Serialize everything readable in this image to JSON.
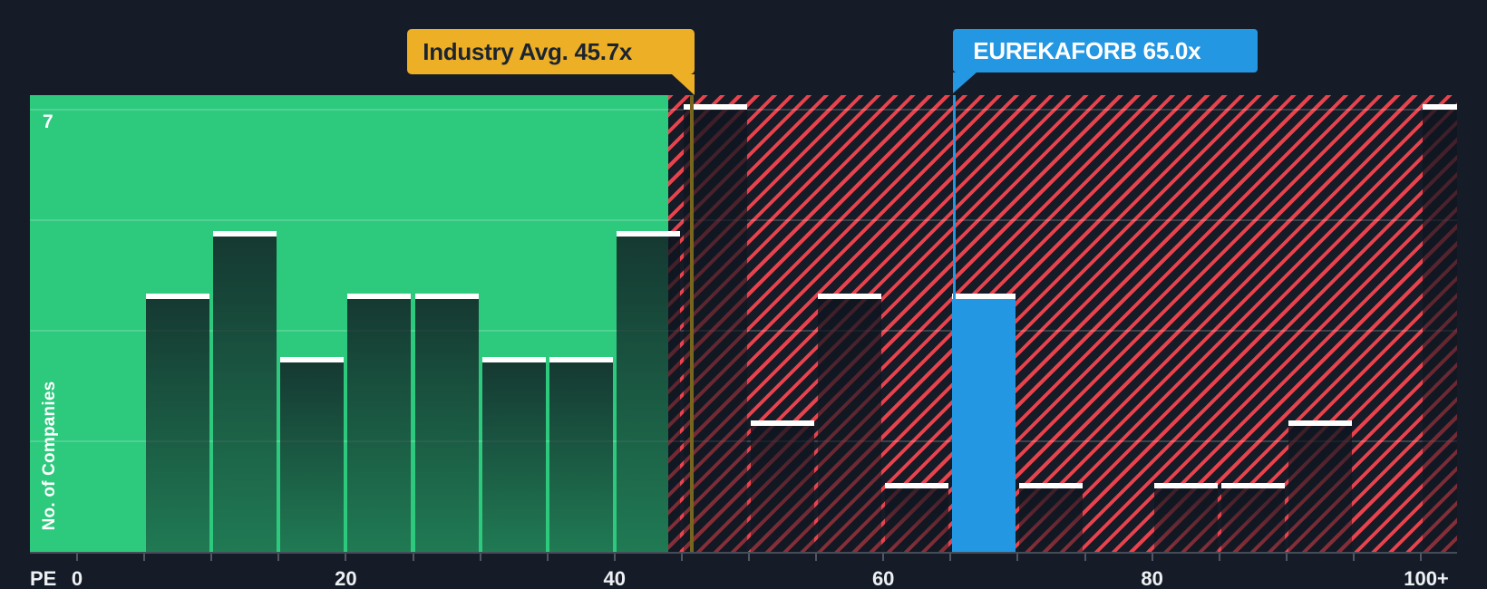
{
  "axis": {
    "pe_label": "PE",
    "y_label": "No. of Companies",
    "y_top_label": "7"
  },
  "tooltips": {
    "industry_avg": "Industry Avg. 45.7x",
    "company": "EUREKAFORB 65.0x"
  },
  "colors": {
    "background": "#161c27",
    "green_zone": "#2dc97d",
    "hatch_red": "#e8434c",
    "company_blue": "#2497e3",
    "industry_yellow": "#edaf26",
    "bar_cap": "#ffffff",
    "axis_text": "#eef1f4"
  },
  "chart_data": {
    "type": "bar",
    "xlabel": "PE",
    "ylabel": "No. of Companies",
    "ylim": [
      0,
      7.25
    ],
    "y_max_tick": 7,
    "gridline_values": [
      1.75,
      3.5,
      5.25,
      7
    ],
    "x_tick_interval": 5,
    "x_tick_range": [
      0,
      100
    ],
    "x_axis_labels": [
      {
        "text": "0",
        "pe": 0
      },
      {
        "text": "20",
        "pe": 20
      },
      {
        "text": "40",
        "pe": 40
      },
      {
        "text": "60",
        "pe": 60
      },
      {
        "text": "80",
        "pe": 80
      },
      {
        "text": "100+",
        "pe": 100
      }
    ],
    "buckets": [
      {
        "pe_from": 0,
        "pe_to": 5,
        "count": 0
      },
      {
        "pe_from": 5,
        "pe_to": 10,
        "count": 4
      },
      {
        "pe_from": 10,
        "pe_to": 15,
        "count": 5
      },
      {
        "pe_from": 15,
        "pe_to": 20,
        "count": 3
      },
      {
        "pe_from": 20,
        "pe_to": 25,
        "count": 4
      },
      {
        "pe_from": 25,
        "pe_to": 30,
        "count": 4
      },
      {
        "pe_from": 30,
        "pe_to": 35,
        "count": 3
      },
      {
        "pe_from": 35,
        "pe_to": 40,
        "count": 3
      },
      {
        "pe_from": 40,
        "pe_to": 45,
        "count": 5
      },
      {
        "pe_from": 45,
        "pe_to": 50,
        "count": 7
      },
      {
        "pe_from": 50,
        "pe_to": 55,
        "count": 2
      },
      {
        "pe_from": 55,
        "pe_to": 60,
        "count": 4
      },
      {
        "pe_from": 60,
        "pe_to": 65,
        "count": 1
      },
      {
        "pe_from": 65,
        "pe_to": 70,
        "count": 4,
        "highlight": "company"
      },
      {
        "pe_from": 70,
        "pe_to": 75,
        "count": 1
      },
      {
        "pe_from": 75,
        "pe_to": 80,
        "count": 0
      },
      {
        "pe_from": 80,
        "pe_to": 85,
        "count": 1
      },
      {
        "pe_from": 85,
        "pe_to": 90,
        "count": 1
      },
      {
        "pe_from": 90,
        "pe_to": 95,
        "count": 2
      },
      {
        "pe_from": 95,
        "pe_to": 100,
        "count": 0
      },
      {
        "pe_from": 100,
        "pe_to": null,
        "count": 7,
        "label": "100+"
      }
    ],
    "markers": [
      {
        "name": "industry_avg",
        "label": "Industry Avg. 45.7x",
        "value": 45.7
      },
      {
        "name": "company",
        "label": "EUREKAFORB 65.0x",
        "value": 65.0
      }
    ],
    "zones": [
      {
        "name": "below_industry_avg",
        "pe_to": 44,
        "style": "green"
      },
      {
        "name": "above_industry_avg",
        "pe_from": 44,
        "style": "red-hatch"
      }
    ],
    "legend": null,
    "grid": true
  }
}
